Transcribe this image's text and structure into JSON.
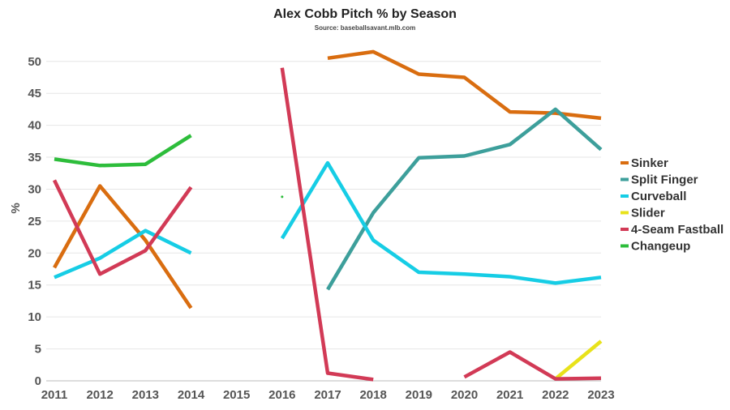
{
  "chart_data": {
    "type": "line",
    "title": "Alex Cobb Pitch % by Season",
    "subtitle": "Source: baseballsavant.mlb.com",
    "xlabel": "",
    "ylabel": "%",
    "ylim": [
      0,
      52
    ],
    "yticks": [
      0,
      5,
      10,
      15,
      20,
      25,
      30,
      35,
      40,
      45,
      50
    ],
    "x": [
      2011,
      2012,
      2013,
      2014,
      2015,
      2016,
      2017,
      2018,
      2019,
      2020,
      2021,
      2022,
      2023
    ],
    "grid": true,
    "legend_position": "right",
    "series": [
      {
        "name": "Sinker",
        "color": "#d96d10",
        "values": [
          17.7,
          30.5,
          22.0,
          11.4,
          null,
          null,
          50.5,
          51.5,
          48.0,
          47.5,
          42.1,
          41.9,
          41.1
        ]
      },
      {
        "name": "Split Finger",
        "color": "#3d9f9b",
        "values": [
          null,
          null,
          null,
          null,
          null,
          null,
          14.3,
          26.3,
          34.9,
          35.2,
          37.0,
          42.5,
          36.2
        ]
      },
      {
        "name": "Curveball",
        "color": "#16cde5",
        "values": [
          16.2,
          19.2,
          23.5,
          20.0,
          null,
          22.3,
          34.1,
          22.0,
          17.0,
          16.7,
          16.3,
          15.3,
          16.2
        ]
      },
      {
        "name": "Slider",
        "color": "#e8e21a",
        "values": [
          null,
          null,
          null,
          null,
          null,
          null,
          null,
          null,
          null,
          null,
          null,
          0.3,
          6.2
        ]
      },
      {
        "name": "4-Seam Fastball",
        "color": "#d23a56",
        "values": [
          31.4,
          16.7,
          20.4,
          30.3,
          null,
          49.0,
          1.2,
          0.2,
          null,
          0.6,
          4.5,
          0.3,
          0.4
        ]
      },
      {
        "name": "Changeup",
        "color": "#2dbd3b",
        "values": [
          34.7,
          33.7,
          33.9,
          38.4,
          null,
          28.8,
          null,
          null,
          null,
          null,
          null,
          null,
          null
        ]
      }
    ]
  }
}
